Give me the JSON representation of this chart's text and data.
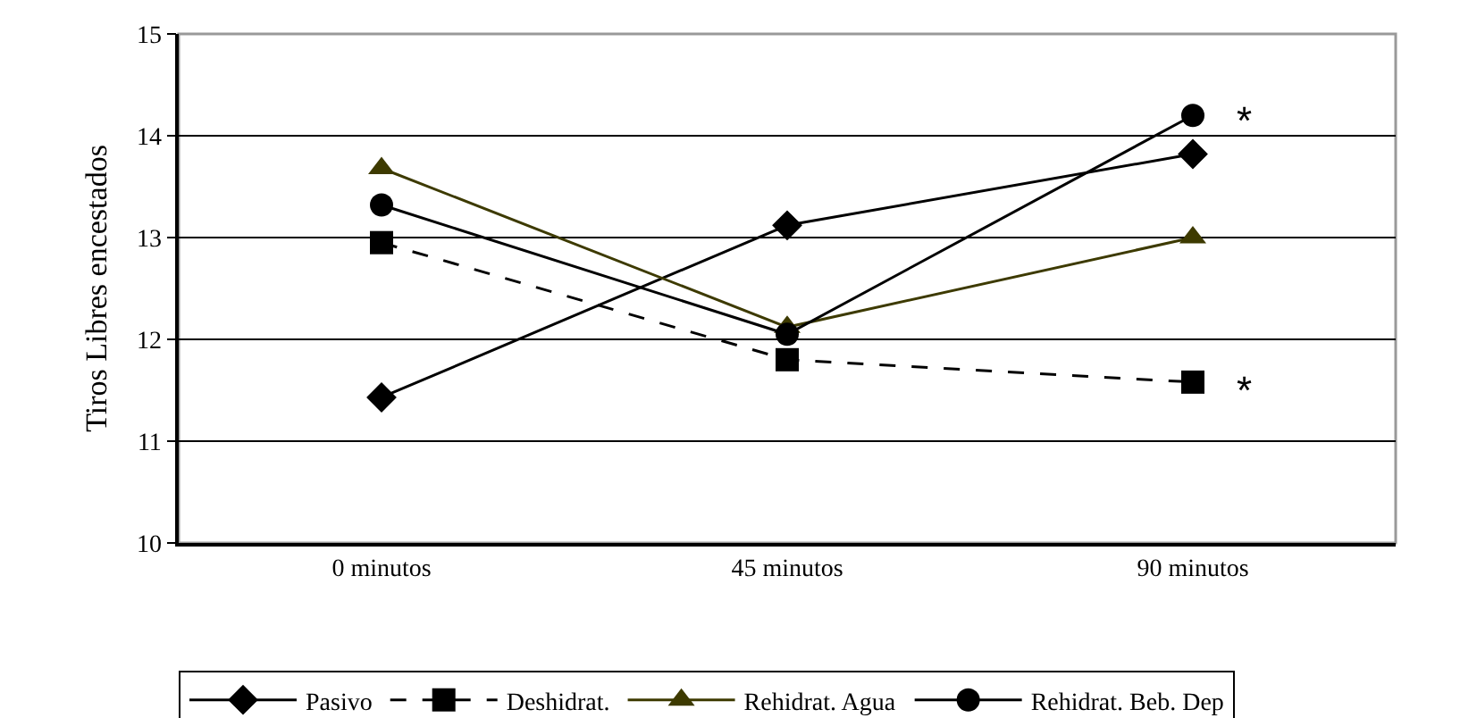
{
  "chart_data": {
    "type": "line",
    "ylabel": "Tiros Libres encestados",
    "categories": [
      "0 minutos",
      "45 minutos",
      "90 minutos"
    ],
    "series": [
      {
        "name": "Pasivo",
        "color": "#000000",
        "values": [
          11.43,
          13.12,
          13.82
        ],
        "marker": "diamond",
        "line_style": "solid"
      },
      {
        "name": "Deshidrat.",
        "color": "#000000",
        "values": [
          12.95,
          11.8,
          11.58
        ],
        "marker": "square",
        "line_style": "dashed"
      },
      {
        "name": "Rehidrat. Agua",
        "color": "#3d3a00",
        "values": [
          13.68,
          12.12,
          13.0
        ],
        "marker": "triangle",
        "line_style": "solid"
      },
      {
        "name": "Rehidrat. Beb. Dep",
        "color": "#000000",
        "values": [
          13.32,
          12.05,
          14.2
        ],
        "marker": "circle",
        "line_style": "solid"
      }
    ],
    "annotations": [
      "*",
      "*"
    ],
    "ylim": [
      10,
      15
    ],
    "yticks": [
      10,
      11,
      12,
      13,
      14,
      15
    ],
    "grid": "y",
    "legend": "bottom"
  }
}
